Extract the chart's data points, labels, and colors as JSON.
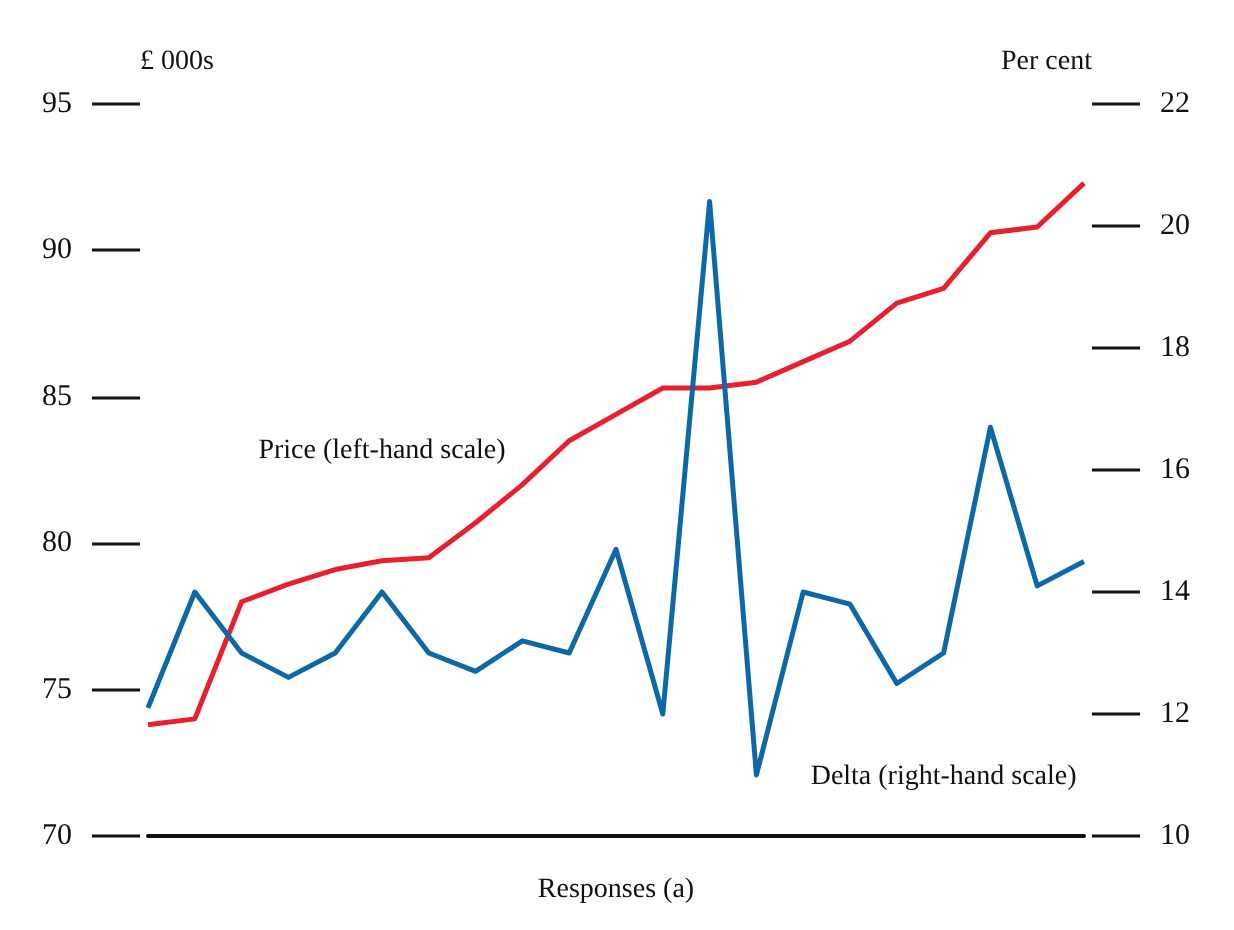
{
  "chart_data": {
    "type": "line",
    "xlabel": "Responses (a)",
    "ylabel": "£ 000s",
    "y2label": "Per cent",
    "categories": [
      null,
      null,
      null,
      null,
      null,
      null,
      null,
      null,
      null,
      null,
      null,
      null,
      null,
      null,
      null,
      null,
      null,
      null,
      null,
      null,
      null
    ],
    "series": [
      {
        "name": "Price (left-hand scale)",
        "color": "#e8202e",
        "values": [
          73.8,
          74.0,
          78.0,
          78.6,
          79.1,
          79.4,
          79.5,
          80.7,
          82.0,
          83.5,
          84.4,
          85.3,
          85.3,
          85.5,
          86.2,
          86.9,
          88.2,
          88.7,
          90.6,
          90.8,
          92.3
        ]
      },
      {
        "name": "Delta (right-hand scale)",
        "color": "#0d68a8",
        "axis": "y2",
        "values": [
          12.1,
          14.0,
          13.0,
          12.6,
          13.0,
          14.0,
          13.0,
          12.7,
          13.2,
          13.0,
          14.7,
          12.0,
          20.4,
          11.0,
          14.0,
          13.8,
          12.5,
          13.0,
          16.7,
          14.1,
          14.5
        ]
      }
    ],
    "ylim": [
      70,
      95
    ],
    "yticks": [
      70,
      75,
      80,
      85,
      90,
      95
    ],
    "y2lim": [
      10,
      22
    ],
    "y2ticks": [
      10,
      12,
      14,
      16,
      18,
      20,
      22
    ],
    "grid": false,
    "legend": false,
    "marker": "none",
    "line_style": "solid"
  }
}
